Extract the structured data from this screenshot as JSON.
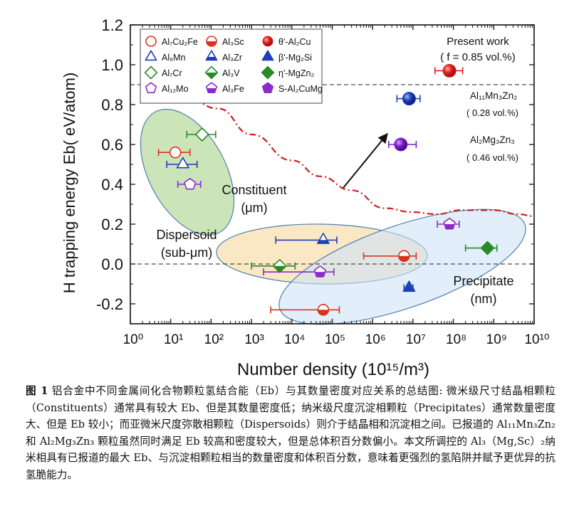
{
  "chart_data": {
    "type": "scatter",
    "xscale": "log",
    "xlim": [
      1,
      10000000000.0
    ],
    "ylim": [
      -0.3,
      1.2
    ],
    "xlabel": "Number density (10¹⁵/m³)",
    "ylabel": "H trapping energy  Eb( eV/atom)",
    "x_tick_labels": [
      "10⁰",
      "10¹",
      "10²",
      "10³",
      "10⁴",
      "10⁵",
      "10⁶",
      "10⁷",
      "10⁸",
      "10⁹",
      "10¹⁰"
    ],
    "y_tick_labels": [
      "-0.2",
      "0.0",
      "0.2",
      "0.4",
      "0.6",
      "0.8",
      "1.0",
      "1.2"
    ],
    "y_ticks": [
      -0.2,
      0.0,
      0.2,
      0.4,
      0.6,
      0.8,
      1.0,
      1.2
    ],
    "grid": false,
    "legend_position": "top-left",
    "reference_lines": [
      {
        "y": 0.9,
        "style": "dashed"
      },
      {
        "y": 0.0,
        "style": "dashed"
      }
    ],
    "threshold_curve": {
      "style": "dash-dot",
      "color": "#cc1f1f",
      "points": [
        [
          20,
          0.85
        ],
        [
          150,
          0.78
        ],
        [
          1000,
          0.65
        ],
        [
          10000,
          0.52
        ],
        [
          50000,
          0.44
        ],
        [
          300000,
          0.37
        ],
        [
          2000000,
          0.28
        ],
        [
          10000000,
          0.26
        ],
        [
          40000000,
          0.25
        ],
        [
          150000000,
          0.27
        ],
        [
          1000000000,
          0.27
        ],
        [
          4000000000,
          0.25
        ],
        [
          10000000000,
          0.24
        ]
      ]
    },
    "regions": [
      {
        "label": "Constituent\n(μm)",
        "color": "#b9dca1"
      },
      {
        "label": "Dispersoid\n(sub-μm)",
        "color": "#f8dfb0"
      },
      {
        "label": "Precipitate\n(nm)",
        "color": "#cfe3f6"
      }
    ],
    "series": [
      {
        "name": "Al7Cu2Fe",
        "color": "#d8341f",
        "marker": "circle",
        "filled": false,
        "points": [
          {
            "x": 13,
            "y": 0.56,
            "xerr": [
              5,
              30
            ]
          }
        ]
      },
      {
        "name": "Al6Mn",
        "color": "#1f3fb8",
        "marker": "triangle",
        "filled": false,
        "points": [
          {
            "x": 20,
            "y": 0.5,
            "xerr": [
              8,
              45
            ]
          }
        ]
      },
      {
        "name": "Al7Cr",
        "color": "#2a8a2a",
        "marker": "diamond",
        "filled": false,
        "points": [
          {
            "x": 60,
            "y": 0.65,
            "xerr": [
              25,
              130
            ]
          }
        ]
      },
      {
        "name": "Al12Mo",
        "color": "#8a2bc8",
        "marker": "pentagon",
        "filled": false,
        "points": [
          {
            "x": 30,
            "y": 0.4,
            "xerr": [
              15,
              55
            ]
          }
        ]
      },
      {
        "name": "Al3Sc",
        "color": "#d8341f",
        "marker": "half-circle",
        "filled": true,
        "points": [
          {
            "x": 6000000,
            "y": 0.04,
            "xerr": [
              600000,
              12000000
            ]
          },
          {
            "x": 60000,
            "y": -0.23,
            "xerr": [
              3000,
              150000
            ]
          }
        ]
      },
      {
        "name": "Al3Zr",
        "color": "#1f3fb8",
        "marker": "half-triangle",
        "filled": true,
        "points": [
          {
            "x": 60000,
            "y": 0.12,
            "xerr": [
              4000,
              130000
            ]
          }
        ]
      },
      {
        "name": "Al3V",
        "color": "#2a8a2a",
        "marker": "half-diamond",
        "filled": true,
        "points": [
          {
            "x": 5000,
            "y": -0.01,
            "xerr": [
              1000,
              12000
            ]
          }
        ]
      },
      {
        "name": "Al3Fe",
        "color": "#8a2bc8",
        "marker": "half-pentagon",
        "filled": true,
        "points": [
          {
            "x": 50000,
            "y": -0.04,
            "xerr": [
              2000,
              110000
            ]
          },
          {
            "x": 80000000,
            "y": 0.2,
            "xerr": [
              40000000,
              140000000
            ]
          }
        ]
      },
      {
        "name": "θ'-Al2Cu",
        "color": "#e02020",
        "marker": "circle",
        "filled": true,
        "points": [
          {
            "x": 80000000,
            "y": 0.97,
            "xerr": [
              35000000,
              170000000
            ]
          }
        ]
      },
      {
        "name": "β'-Mg2Si",
        "color": "#1f3fb8",
        "marker": "triangle",
        "filled": true,
        "points": [
          {
            "x": 8000000,
            "y": -0.12,
            "xerr": [
              6000000,
              10000000
            ]
          }
        ]
      },
      {
        "name": "η'-MgZn2",
        "color": "#2a8a2a",
        "marker": "diamond",
        "filled": true,
        "points": [
          {
            "x": 700000000,
            "y": 0.08,
            "xerr": [
              200000000,
              1200000000
            ]
          }
        ]
      },
      {
        "name": "S-Al2CuMg",
        "color": "#8a2bc8",
        "marker": "pentagon",
        "filled": true,
        "points": []
      },
      {
        "name": "Al11Mn3Zn2",
        "color": "#1f3fb8",
        "marker": "sphere",
        "filled": true,
        "points": [
          {
            "x": 8000000,
            "y": 0.83,
            "xerr": [
              4000000,
              15000000
            ]
          }
        ]
      },
      {
        "name": "Al2Mg3Zn3",
        "color": "#7a1fc8",
        "marker": "sphere",
        "filled": true,
        "points": [
          {
            "x": 5000000,
            "y": 0.6,
            "xerr": [
              2500000,
              12000000
            ]
          }
        ]
      }
    ],
    "legend_entries": [
      {
        "label": "Al₇Cu₂Fe",
        "series": "Al7Cu2Fe"
      },
      {
        "label": "Al₆Mn",
        "series": "Al6Mn"
      },
      {
        "label": "Al₇Cr",
        "series": "Al7Cr"
      },
      {
        "label": "Al₁₂Mo",
        "series": "Al12Mo"
      },
      {
        "label": "Al₃Sc",
        "series": "Al3Sc"
      },
      {
        "label": "Al₃Zr",
        "series": "Al3Zr"
      },
      {
        "label": "Al₃V",
        "series": "Al3V"
      },
      {
        "label": "Al₃Fe",
        "series": "Al3Fe"
      },
      {
        "label": "θ'-Al₂Cu",
        "series": "θ'-Al2Cu"
      },
      {
        "label": "β'-Mg₂Si",
        "series": "β'-Mg2Si"
      },
      {
        "label": "η'-MgZn₂",
        "series": "η'-MgZn2"
      },
      {
        "label": "S-Al₂CuMg",
        "series": "S-Al2CuMg"
      }
    ],
    "annotations": [
      {
        "text": "Present work"
      },
      {
        "text": "( f = 0.85 vol.%)"
      },
      {
        "text": "Al₁₁Mn₃Zn₂"
      },
      {
        "text": "( 0.28 vol.%)"
      },
      {
        "text": "Al₂Mg₃Zn₃"
      },
      {
        "text": "( 0.46 vol.%)"
      }
    ]
  },
  "caption": {
    "label": "图 1",
    "text": " 铝合金中不同金属间化合物颗粒氢结合能（Eb）与其数量密度对应关系的总结图: 微米级尺寸结晶相颗粒（Constituents）通常具有较大 Eb、但是其数量密度低；纳米级尺度沉淀相颗粒（Precipitates）通常数量密度大、但是 Eb 较小；而亚微米尺度弥散相颗粒（Dispersoids）则介于结晶相和沉淀相之间。已报道的 Al₁₁Mn₃Zn₂ 和 Al₂Mg₃Zn₃ 颗粒虽然同时满足 Eb 较高和密度较大，但是总体积百分数偏小。本文所调控的 Al₃（Mg,Sc）₂纳米相具有已报道的最大 Eb、与沉淀相颗粒相当的数量密度和体积百分数，意味着更强烈的氢陷阱并赋予更优异的抗氢脆能力。"
  }
}
